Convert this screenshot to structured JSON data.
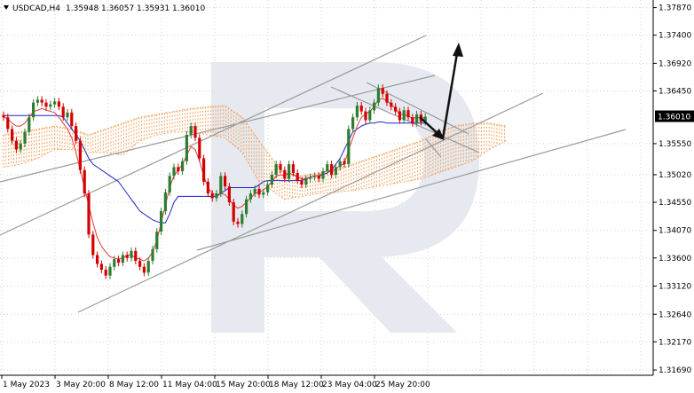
{
  "header": {
    "menu_icon": "triangle-down-icon",
    "symbol": "USDCAD,H4",
    "open": "1.35948",
    "high": "1.36057",
    "low": "1.35931",
    "close": "1.36010"
  },
  "watermark": {
    "icon": "r-logo-watermark"
  },
  "colors": {
    "bull_candle": "#2e7d32",
    "bear_candle": "#d50000",
    "tenkan_line": "#e53935",
    "kijun_line": "#1e22c8",
    "cloud": "#f4a460",
    "channel_lines": "#9a9a9a",
    "forecast_arrow": "#111111",
    "grid": "#cfcfcf",
    "watermark": "#e6e9ef",
    "price_tag_bg": "#000000",
    "price_tag_text": "#ffffff"
  },
  "chart_data": {
    "type": "candlestick",
    "symbol": "USDCAD",
    "timeframe": "H4",
    "grid": true,
    "y_tick_labels": [
      "1.37870",
      "1.37400",
      "1.36920",
      "1.36450",
      "1.35550",
      "1.35020",
      "1.34550",
      "1.34070",
      "1.33600",
      "1.33120",
      "1.32640",
      "1.32170",
      "1.31690"
    ],
    "y_ticks": [
      1.3787,
      1.374,
      1.3692,
      1.3645,
      1.3555,
      1.3502,
      1.3455,
      1.3407,
      1.336,
      1.3312,
      1.3264,
      1.3217,
      1.3169
    ],
    "ylim": [
      1.316,
      1.38
    ],
    "x_tick_labels": [
      "1 May 2023",
      "3 May 20:00",
      "8 May 12:00",
      "11 May 04:00",
      "15 May 20:00",
      "18 May 12:00",
      "23 May 04:00",
      "25 May 20:00"
    ],
    "current_price": "1.36010",
    "current_price_value": 1.3601,
    "candles_close": [
      1.36,
      1.358,
      1.356,
      1.3545,
      1.3555,
      1.3575,
      1.36,
      1.3625,
      1.363,
      1.3625,
      1.3618,
      1.3622,
      1.3627,
      1.3618,
      1.36,
      1.3608,
      1.3585,
      1.356,
      1.351,
      1.347,
      1.34,
      1.3365,
      1.335,
      1.334,
      1.333,
      1.3345,
      1.3358,
      1.3352,
      1.3365,
      1.336,
      1.3372,
      1.3355,
      1.3345,
      1.3335,
      1.3355,
      1.3375,
      1.3405,
      1.344,
      1.3472,
      1.35,
      1.3515,
      1.3508,
      1.3525,
      1.357,
      1.3585,
      1.3565,
      1.353,
      1.349,
      1.347,
      1.3462,
      1.347,
      1.35,
      1.3482,
      1.3455,
      1.3422,
      1.3418,
      1.3435,
      1.346,
      1.347,
      1.3478,
      1.3468,
      1.3472,
      1.3485,
      1.3502,
      1.352,
      1.351,
      1.3495,
      1.352,
      1.3505,
      1.3492,
      1.3485,
      1.3495,
      1.3498,
      1.35,
      1.3495,
      1.3508,
      1.352,
      1.3502,
      1.3515,
      1.3525,
      1.352,
      1.358,
      1.36,
      1.362,
      1.361,
      1.3595,
      1.3612,
      1.3625,
      1.365,
      1.364,
      1.3625,
      1.3618,
      1.361,
      1.3595,
      1.3612,
      1.36,
      1.359,
      1.3605,
      1.3592,
      1.3601
    ],
    "tenkan_sen": [
      1.36,
      1.3598,
      1.359,
      1.3585,
      1.3585,
      1.359,
      1.36,
      1.361,
      1.3612,
      1.3615,
      1.3612,
      1.361,
      1.3608,
      1.36,
      1.359,
      1.358,
      1.3565,
      1.354,
      1.351,
      1.348,
      1.345,
      1.342,
      1.3395,
      1.338,
      1.337,
      1.3362,
      1.336,
      1.3358,
      1.336,
      1.3365,
      1.3365,
      1.336,
      1.3358,
      1.3355,
      1.336,
      1.337,
      1.339,
      1.342,
      1.345,
      1.348,
      1.35,
      1.351,
      1.352,
      1.3535,
      1.355,
      1.3545,
      1.3525,
      1.35,
      1.348,
      1.347,
      1.3468,
      1.347,
      1.3468,
      1.346,
      1.345,
      1.3445,
      1.3448,
      1.3455,
      1.3462,
      1.347,
      1.3472,
      1.3476,
      1.3482,
      1.349,
      1.35,
      1.3502,
      1.35,
      1.3505,
      1.3502,
      1.3498,
      1.3495,
      1.3496,
      1.3498,
      1.35,
      1.35,
      1.3505,
      1.351,
      1.3508,
      1.3512,
      1.3518,
      1.352,
      1.3545,
      1.3565,
      1.3585,
      1.36,
      1.3605,
      1.361,
      1.3618,
      1.363,
      1.3632,
      1.3628,
      1.3622,
      1.3615,
      1.3605,
      1.3605,
      1.3602,
      1.3598,
      1.36,
      1.3598,
      1.36
    ],
    "kijun_sen": [
      1.3603,
      1.3603,
      1.3603,
      1.3603,
      1.3603,
      1.3603,
      1.3603,
      1.3603,
      1.3603,
      1.3603,
      1.3603,
      1.3603,
      1.3603,
      1.3603,
      1.36,
      1.359,
      1.358,
      1.357,
      1.356,
      1.3545,
      1.353,
      1.352,
      1.3515,
      1.351,
      1.3505,
      1.35,
      1.3495,
      1.349,
      1.348,
      1.347,
      1.346,
      1.345,
      1.344,
      1.3435,
      1.343,
      1.3425,
      1.3422,
      1.342,
      1.342,
      1.3435,
      1.3455,
      1.3465,
      1.3465,
      1.3465,
      1.3465,
      1.3465,
      1.3465,
      1.3465,
      1.3465,
      1.3465,
      1.3465,
      1.347,
      1.3475,
      1.348,
      1.348,
      1.348,
      1.348,
      1.348,
      1.348,
      1.348,
      1.3485,
      1.349,
      1.3492,
      1.3492,
      1.3492,
      1.3492,
      1.3492,
      1.3492,
      1.3492,
      1.3492,
      1.3492,
      1.3495,
      1.3498,
      1.35,
      1.35,
      1.3502,
      1.3505,
      1.351,
      1.352,
      1.353,
      1.3545,
      1.356,
      1.3575,
      1.358,
      1.3585,
      1.3588,
      1.359,
      1.359,
      1.3592,
      1.3592,
      1.359,
      1.359,
      1.359,
      1.359,
      1.359,
      1.359,
      1.359,
      1.359,
      1.359,
      1.359
    ],
    "cloud_points": [
      [
        0,
        1.357,
        1.3515
      ],
      [
        4,
        1.3575,
        1.352
      ],
      [
        8,
        1.358,
        1.353
      ],
      [
        12,
        1.3585,
        1.3545
      ],
      [
        16,
        1.358,
        1.3545
      ],
      [
        20,
        1.357,
        1.354
      ],
      [
        24,
        1.358,
        1.354
      ],
      [
        28,
        1.359,
        1.3535
      ],
      [
        32,
        1.36,
        1.356
      ],
      [
        36,
        1.3605,
        1.357
      ],
      [
        40,
        1.361,
        1.3575
      ],
      [
        44,
        1.3615,
        1.3575
      ],
      [
        48,
        1.3618,
        1.357
      ],
      [
        52,
        1.362,
        1.3565
      ],
      [
        56,
        1.36,
        1.354
      ],
      [
        60,
        1.356,
        1.349
      ],
      [
        64,
        1.352,
        1.347
      ],
      [
        66,
        1.3505,
        1.346
      ],
      [
        70,
        1.35,
        1.3465
      ],
      [
        74,
        1.3505,
        1.347
      ],
      [
        78,
        1.351,
        1.3472
      ],
      [
        82,
        1.352,
        1.3475
      ],
      [
        86,
        1.353,
        1.348
      ],
      [
        90,
        1.354,
        1.3485
      ],
      [
        94,
        1.355,
        1.349
      ],
      [
        98,
        1.356,
        1.3495
      ],
      [
        102,
        1.3575,
        1.3505
      ],
      [
        106,
        1.3585,
        1.3515
      ],
      [
        110,
        1.359,
        1.3525
      ],
      [
        114,
        1.359,
        1.3545
      ],
      [
        118,
        1.3585,
        1.356
      ]
    ]
  }
}
